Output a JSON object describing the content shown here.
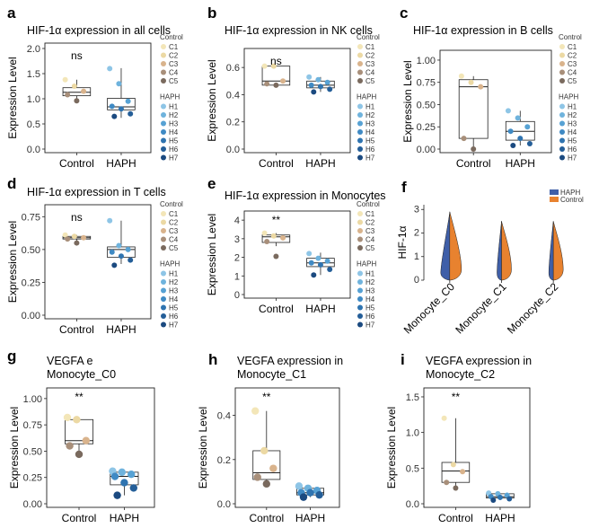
{
  "colors": {
    "control": [
      "#f3e6b8",
      "#ecd9a4",
      "#d9b38c",
      "#a88f7a",
      "#7a6a5e"
    ],
    "haph": [
      "#8ec5e6",
      "#6fb3dd",
      "#57a2d4",
      "#3f8ac4",
      "#2f74b0",
      "#245e98",
      "#1b4a80"
    ],
    "violin_haph": "#3f5fa8",
    "violin_control": "#e8822f"
  },
  "legend": {
    "control_title": "Control",
    "control_items": [
      "C1",
      "C2",
      "C3",
      "C4",
      "C5"
    ],
    "haph_title": "HAPH",
    "haph_items": [
      "H1",
      "H2",
      "H3",
      "H4",
      "H5",
      "H6",
      "H7"
    ]
  },
  "chart_data": [
    {
      "panel": "a",
      "type": "box",
      "title": "HIF-1α expression in all cells",
      "ylabel": "Expression Level",
      "ylim": [
        0,
        2.0
      ],
      "yticks": [
        "0.0",
        "0.5",
        "1.0",
        "1.5",
        "2.0"
      ],
      "categories": [
        "Control",
        "HAPH"
      ],
      "significance": "ns",
      "series": [
        {
          "group": "Control",
          "box": [
            0.95,
            1.06,
            1.13,
            1.22,
            1.38
          ],
          "points": [
            1.38,
            1.25,
            1.15,
            1.08,
            0.96
          ]
        },
        {
          "group": "HAPH",
          "box": [
            0.62,
            0.78,
            0.84,
            1.01,
            1.61
          ],
          "points": [
            1.6,
            1.3,
            0.95,
            0.85,
            0.8,
            0.7,
            0.65
          ]
        }
      ]
    },
    {
      "panel": "b",
      "type": "box",
      "title": "HIF-1α expression in NK cells",
      "ylabel": "Expression Level",
      "ylim": [
        0,
        0.7
      ],
      "yticks": [
        "0.0",
        "0.2",
        "0.4",
        "0.6"
      ],
      "categories": [
        "Control",
        "HAPH"
      ],
      "significance": "ns",
      "series": [
        {
          "group": "Control",
          "box": [
            0.47,
            0.47,
            0.5,
            0.61,
            0.61
          ],
          "points": [
            0.61,
            0.61,
            0.5,
            0.48,
            0.47
          ]
        },
        {
          "group": "HAPH",
          "box": [
            0.42,
            0.45,
            0.47,
            0.5,
            0.53
          ],
          "points": [
            0.53,
            0.51,
            0.49,
            0.47,
            0.46,
            0.44,
            0.42
          ]
        }
      ]
    },
    {
      "panel": "c",
      "type": "box",
      "title": "HIF-1α expression in B cells",
      "ylabel": "Expression Level",
      "ylim": [
        0,
        1.05
      ],
      "yticks": [
        "0.00",
        "0.25",
        "0.50",
        "0.75",
        "1.00"
      ],
      "categories": [
        "Control",
        "HAPH"
      ],
      "significance": "",
      "series": [
        {
          "group": "Control",
          "box": [
            0.0,
            0.12,
            0.7,
            0.78,
            0.82
          ],
          "points": [
            0.82,
            0.75,
            0.7,
            0.12,
            0.0
          ]
        },
        {
          "group": "HAPH",
          "box": [
            0.04,
            0.1,
            0.2,
            0.31,
            0.43
          ],
          "points": [
            0.43,
            0.35,
            0.25,
            0.2,
            0.12,
            0.06,
            0.04
          ]
        }
      ]
    },
    {
      "panel": "d",
      "type": "box",
      "title": "HIF-1α expression in T cells",
      "ylabel": "Expression Level",
      "ylim": [
        0,
        0.8
      ],
      "yticks": [
        "0.00",
        "0.25",
        "0.50",
        "0.75"
      ],
      "categories": [
        "Control",
        "HAPH"
      ],
      "significance": "ns",
      "series": [
        {
          "group": "Control",
          "box": [
            0.56,
            0.58,
            0.59,
            0.6,
            0.61
          ],
          "points": [
            0.61,
            0.6,
            0.59,
            0.58,
            0.55
          ]
        },
        {
          "group": "HAPH",
          "box": [
            0.39,
            0.44,
            0.5,
            0.52,
            0.72
          ],
          "points": [
            0.72,
            0.53,
            0.5,
            0.48,
            0.45,
            0.42,
            0.38
          ]
        }
      ]
    },
    {
      "panel": "e",
      "type": "box",
      "title": "HIF-1α expression in Monocytes",
      "ylabel": "Expression Level",
      "ylim": [
        0,
        4.2
      ],
      "yticks": [
        "0",
        "1",
        "2",
        "3",
        "4"
      ],
      "categories": [
        "Control",
        "HAPH"
      ],
      "significance": "**",
      "series": [
        {
          "group": "Control",
          "box": [
            2.6,
            2.8,
            3.1,
            3.2,
            3.3
          ],
          "points": [
            3.3,
            3.15,
            3.05,
            2.85,
            2.05
          ]
        },
        {
          "group": "HAPH",
          "box": [
            1.05,
            1.5,
            1.7,
            1.95,
            2.25
          ],
          "points": [
            2.2,
            1.95,
            1.8,
            1.7,
            1.6,
            1.35,
            1.05
          ]
        }
      ]
    },
    {
      "panel": "f",
      "type": "violin",
      "ylabel": "HIF-1α",
      "ylim": [
        0,
        3.2
      ],
      "yticks": [
        "0",
        "1",
        "2",
        "3"
      ],
      "categories": [
        "Monocyte_C0",
        "Monocyte_C1",
        "Monocyte_C2"
      ],
      "legend": [
        "HAPH",
        "Control"
      ],
      "series": [
        {
          "name": "HAPH",
          "max": [
            2.9,
            2.5,
            2.5
          ]
        },
        {
          "name": "Control",
          "max": [
            2.9,
            2.5,
            2.5
          ]
        }
      ]
    },
    {
      "panel": "g",
      "type": "box",
      "title": "VEGFA e",
      "subtitle": "Monocyte_C0",
      "ylabel": "Expression Level",
      "ylim": [
        0,
        1.05
      ],
      "yticks": [
        "0.00",
        "0.25",
        "0.50",
        "0.75",
        "1.00"
      ],
      "categories": [
        "Control",
        "HAPH"
      ],
      "significance": "**",
      "series": [
        {
          "group": "Control",
          "box": [
            0.47,
            0.57,
            0.6,
            0.8,
            0.82
          ],
          "points": [
            0.82,
            0.8,
            0.6,
            0.55,
            0.47
          ]
        },
        {
          "group": "HAPH",
          "box": [
            0.08,
            0.18,
            0.26,
            0.3,
            0.31
          ],
          "points": [
            0.31,
            0.3,
            0.28,
            0.26,
            0.2,
            0.15,
            0.08
          ]
        }
      ]
    },
    {
      "panel": "h",
      "type": "box",
      "title": "VEGFA expression in",
      "subtitle": "Monocyte_C1",
      "ylabel": "Expression Level",
      "ylim": [
        0,
        0.5
      ],
      "yticks": [
        "0.0",
        "0.2",
        "0.4"
      ],
      "categories": [
        "Control",
        "HAPH"
      ],
      "significance": "**",
      "series": [
        {
          "group": "Control",
          "box": [
            0.09,
            0.11,
            0.14,
            0.24,
            0.42
          ],
          "points": [
            0.42,
            0.24,
            0.16,
            0.12,
            0.09
          ]
        },
        {
          "group": "HAPH",
          "box": [
            0.03,
            0.04,
            0.05,
            0.07,
            0.08
          ],
          "points": [
            0.08,
            0.07,
            0.06,
            0.05,
            0.05,
            0.04,
            0.03
          ]
        }
      ]
    },
    {
      "panel": "i",
      "type": "box",
      "title": "VEGFA expression in",
      "subtitle": "Monocyte_C2",
      "ylabel": "Expression Level",
      "ylim": [
        0,
        1.55
      ],
      "yticks": [
        "0.0",
        "0.5",
        "1.0",
        "1.5"
      ],
      "categories": [
        "Control",
        "HAPH"
      ],
      "significance": "**",
      "series": [
        {
          "group": "Control",
          "box": [
            0.22,
            0.3,
            0.46,
            0.58,
            1.2
          ],
          "points": [
            1.2,
            0.55,
            0.45,
            0.3,
            0.22
          ]
        },
        {
          "group": "HAPH",
          "box": [
            0.05,
            0.08,
            0.1,
            0.14,
            0.15
          ],
          "points": [
            0.15,
            0.14,
            0.12,
            0.1,
            0.09,
            0.07,
            0.05
          ]
        }
      ]
    }
  ]
}
